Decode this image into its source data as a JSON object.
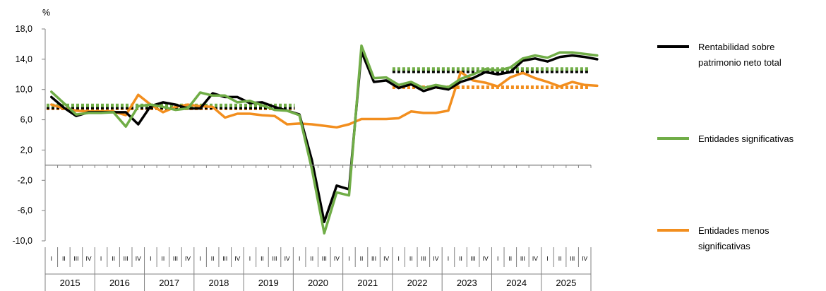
{
  "chart_data": {
    "type": "line",
    "ylabel": "%",
    "ylim": [
      -10,
      18
    ],
    "yticks": [
      "18,0",
      "14,0",
      "10,0",
      "6,0",
      "2,0",
      "-2,0",
      "-6,0",
      "-10,0"
    ],
    "years": [
      "2015",
      "2016",
      "2017",
      "2018",
      "2019",
      "2020",
      "2021",
      "2022",
      "2023",
      "2024",
      "2025"
    ],
    "quarter_labels": [
      "I",
      "II",
      "III",
      "IV"
    ],
    "grid": false,
    "legend_position": "right",
    "series": [
      {
        "name": "Rentabilidad sobre patrimonio neto total",
        "color": "#000000",
        "values": [
          9.0,
          7.6,
          6.5,
          7.0,
          7.0,
          7.0,
          7.0,
          5.4,
          7.8,
          8.3,
          8.0,
          7.5,
          7.5,
          9.5,
          9.0,
          9.0,
          8.2,
          8.3,
          7.7,
          7.2,
          6.7,
          0.7,
          -7.5,
          -2.7,
          -3.2,
          15.0,
          11.0,
          11.2,
          10.2,
          10.7,
          9.8,
          10.3,
          10.0,
          11.0,
          11.5,
          12.3,
          12.0,
          12.3,
          13.8,
          14.1,
          13.7,
          14.3,
          14.5,
          14.3,
          14.0
        ],
        "avg_2015_2019": 7.6,
        "avg_2022_2025": 12.4
      },
      {
        "name": "Entidades significativas",
        "color": "#70AD47",
        "values": [
          9.7,
          8.2,
          6.7,
          6.9,
          6.9,
          7.0,
          5.1,
          7.8,
          8.0,
          7.7,
          7.3,
          7.5,
          9.6,
          9.2,
          9.2,
          8.3,
          8.5,
          7.9,
          7.3,
          7.2,
          6.6,
          -0.5,
          -9.0,
          -3.6,
          -4.0,
          15.8,
          11.5,
          11.6,
          10.6,
          11.0,
          10.2,
          10.6,
          10.3,
          11.4,
          12.0,
          12.7,
          12.5,
          12.9,
          14.1,
          14.5,
          14.2,
          14.9,
          14.9,
          14.7,
          14.5
        ],
        "avg_2015_2019": 7.9,
        "avg_2022_2025": 12.7
      },
      {
        "name": "Entidades menos significativas",
        "color": "#F28E1E",
        "values": [
          8.0,
          7.5,
          7.2,
          7.1,
          7.1,
          7.1,
          6.6,
          9.3,
          8.0,
          7.0,
          7.7,
          8.0,
          7.8,
          7.7,
          6.3,
          6.8,
          6.8,
          6.6,
          6.5,
          5.4,
          5.5,
          5.4,
          5.2,
          5.0,
          5.4,
          6.1,
          6.1,
          6.1,
          6.2,
          7.1,
          6.9,
          6.9,
          7.2,
          12.3,
          11.2,
          10.9,
          10.4,
          11.6,
          12.2,
          11.5,
          11.0,
          10.4,
          11.0,
          10.6,
          10.5
        ],
        "avg_2015_2019": 7.5,
        "avg_2022_2025": 10.3
      }
    ]
  }
}
